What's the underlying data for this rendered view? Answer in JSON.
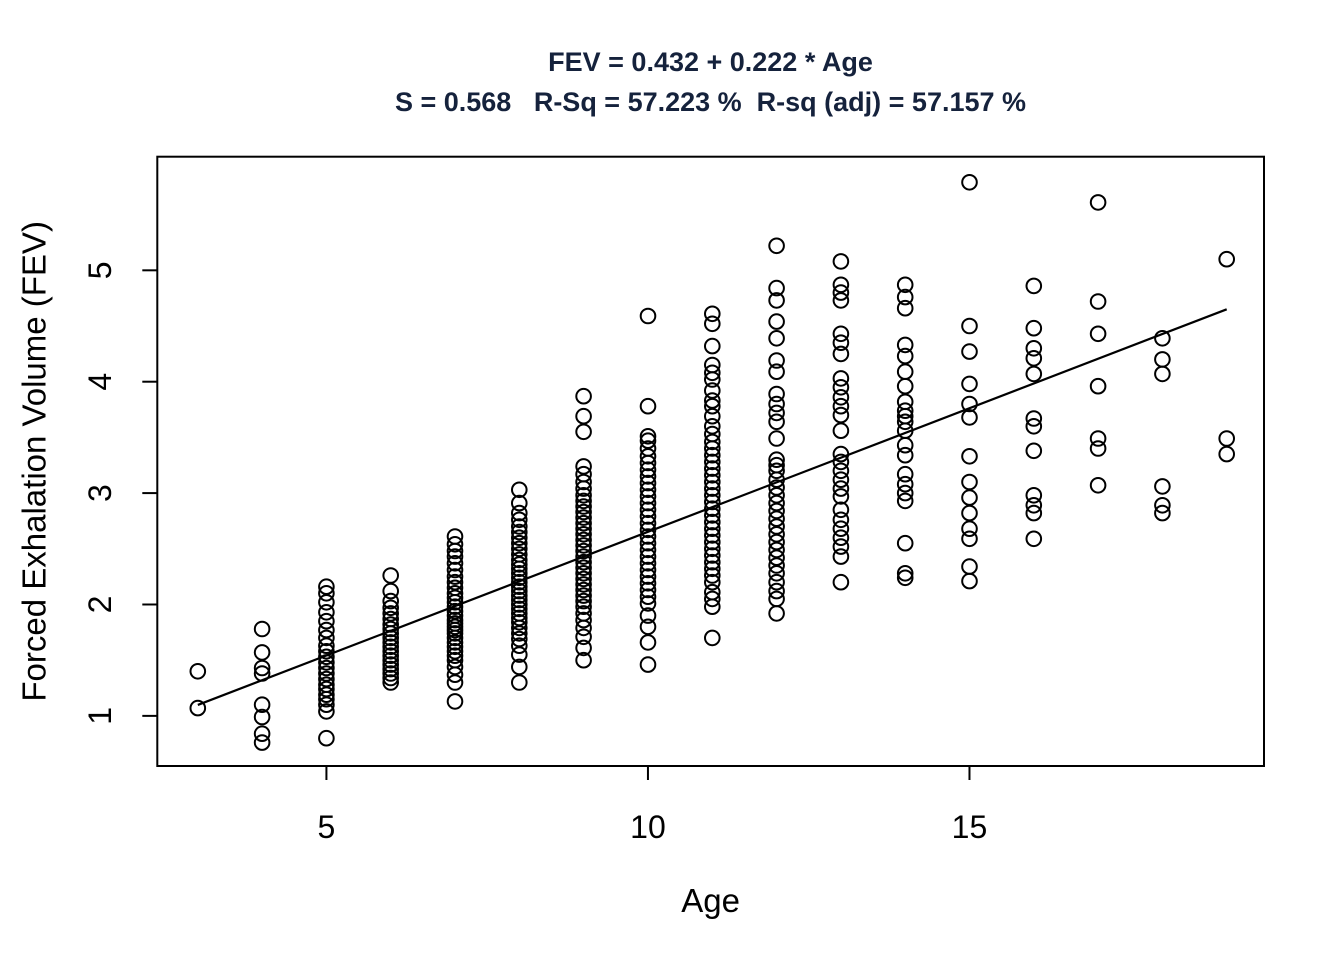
{
  "title": {
    "line1": "FEV = 0.432 + 0.222 * Age",
    "line2": "S = 0.568   R-Sq = 57.223 %  R-sq (adj) = 57.157 %",
    "color": "#15223c"
  },
  "chart_data": {
    "type": "scatter",
    "title": "FEV = 0.432 + 0.222 * Age",
    "subtitle": "S = 0.568   R-Sq = 57.223 %  R-sq (adj) = 57.157 %",
    "xlabel": "Age",
    "ylabel": "Forced Exhalation Volume (FEV)",
    "x_ticks": [
      5,
      10,
      15
    ],
    "y_ticks": [
      1,
      2,
      3,
      4,
      5
    ],
    "xlim": [
      2.37,
      19.58
    ],
    "ylim": [
      0.55,
      6.02
    ],
    "grid": false,
    "legend": "none",
    "marker": {
      "shape": "open-circle",
      "stroke_color": "#000000",
      "fill": "none"
    },
    "regression_line": {
      "equation": "FEV = 0.432 + 0.222 * Age",
      "intercept": 0.432,
      "slope": 0.222,
      "x_start": 3,
      "x_end": 19,
      "color": "#000000"
    },
    "stats": {
      "S": 0.568,
      "R_sq_percent": 57.223,
      "R_sq_adj_percent": 57.157
    },
    "points_by_age": {
      "3": [
        1.07,
        1.4
      ],
      "4": [
        0.76,
        0.84,
        0.99,
        1.1,
        1.38,
        1.43,
        1.57,
        1.78
      ],
      "5": [
        0.8,
        1.04,
        1.1,
        1.15,
        1.19,
        1.24,
        1.28,
        1.33,
        1.38,
        1.43,
        1.48,
        1.53,
        1.58,
        1.63,
        1.7,
        1.77,
        1.85,
        1.93,
        2.02,
        2.1,
        2.16
      ],
      "6": [
        1.3,
        1.34,
        1.38,
        1.42,
        1.46,
        1.5,
        1.54,
        1.58,
        1.62,
        1.66,
        1.7,
        1.74,
        1.78,
        1.82,
        1.87,
        1.92,
        1.97,
        2.03,
        2.12,
        2.26
      ],
      "7": [
        1.13,
        1.3,
        1.37,
        1.44,
        1.5,
        1.54,
        1.58,
        1.62,
        1.66,
        1.7,
        1.74,
        1.77,
        1.8,
        1.83,
        1.86,
        1.9,
        1.94,
        1.98,
        2.02,
        2.06,
        2.1,
        2.15,
        2.2,
        2.25,
        2.31,
        2.37,
        2.43,
        2.48,
        2.54,
        2.61
      ],
      "8": [
        1.3,
        1.44,
        1.55,
        1.63,
        1.69,
        1.74,
        1.79,
        1.84,
        1.88,
        1.92,
        1.96,
        2.0,
        2.04,
        2.08,
        2.12,
        2.16,
        2.2,
        2.24,
        2.28,
        2.32,
        2.36,
        2.4,
        2.45,
        2.5,
        2.55,
        2.6,
        2.65,
        2.7,
        2.76,
        2.82,
        2.91,
        3.03
      ],
      "9": [
        1.5,
        1.61,
        1.71,
        1.79,
        1.86,
        1.92,
        1.98,
        2.03,
        2.08,
        2.13,
        2.18,
        2.23,
        2.28,
        2.33,
        2.38,
        2.43,
        2.48,
        2.53,
        2.58,
        2.63,
        2.68,
        2.73,
        2.78,
        2.83,
        2.88,
        2.93,
        2.98,
        3.04,
        3.1,
        3.17,
        3.24,
        3.55,
        3.69,
        3.87
      ],
      "10": [
        1.46,
        1.66,
        1.8,
        1.9,
        2.01,
        2.07,
        2.13,
        2.19,
        2.25,
        2.31,
        2.37,
        2.43,
        2.49,
        2.55,
        2.61,
        2.67,
        2.73,
        2.79,
        2.85,
        2.91,
        2.97,
        3.03,
        3.09,
        3.15,
        3.21,
        3.27,
        3.33,
        3.4,
        3.47,
        3.51,
        3.78,
        4.59
      ],
      "11": [
        1.7,
        1.98,
        2.05,
        2.11,
        2.2,
        2.26,
        2.32,
        2.38,
        2.44,
        2.5,
        2.56,
        2.62,
        2.68,
        2.74,
        2.8,
        2.86,
        2.92,
        2.98,
        3.04,
        3.1,
        3.16,
        3.22,
        3.28,
        3.34,
        3.4,
        3.46,
        3.53,
        3.6,
        3.69,
        3.78,
        3.83,
        3.92,
        4.02,
        4.08,
        4.15,
        4.32,
        4.52,
        4.61
      ],
      "12": [
        1.92,
        2.05,
        2.12,
        2.2,
        2.28,
        2.35,
        2.42,
        2.49,
        2.56,
        2.63,
        2.7,
        2.77,
        2.84,
        2.91,
        2.98,
        3.05,
        3.12,
        3.2,
        3.25,
        3.3,
        3.49,
        3.64,
        3.72,
        3.8,
        3.89,
        4.09,
        4.19,
        4.39,
        4.54,
        4.73,
        4.84,
        5.22
      ],
      "13": [
        2.2,
        2.43,
        2.52,
        2.6,
        2.68,
        2.76,
        2.85,
        2.97,
        3.04,
        3.12,
        3.2,
        3.28,
        3.35,
        3.56,
        3.7,
        3.78,
        3.86,
        3.95,
        4.03,
        4.25,
        4.35,
        4.43,
        4.73,
        4.8,
        4.87,
        5.08
      ],
      "14": [
        2.24,
        2.28,
        2.55,
        2.93,
        3.0,
        3.08,
        3.17,
        3.34,
        3.43,
        3.56,
        3.64,
        3.69,
        3.74,
        3.82,
        3.96,
        4.09,
        4.23,
        4.33,
        4.66,
        4.76,
        4.87
      ],
      "15": [
        2.21,
        2.34,
        2.59,
        2.68,
        2.82,
        2.96,
        3.1,
        3.33,
        3.68,
        3.8,
        3.98,
        4.27,
        4.5,
        5.79
      ],
      "16": [
        2.59,
        2.82,
        2.89,
        2.98,
        3.38,
        3.6,
        3.67,
        4.07,
        4.21,
        4.3,
        4.48,
        4.86
      ],
      "17": [
        3.07,
        3.4,
        3.49,
        3.96,
        4.43,
        4.72,
        5.61
      ],
      "18": [
        2.82,
        2.89,
        3.06,
        4.07,
        4.2,
        4.39
      ],
      "19": [
        3.35,
        3.49,
        5.1
      ]
    }
  }
}
